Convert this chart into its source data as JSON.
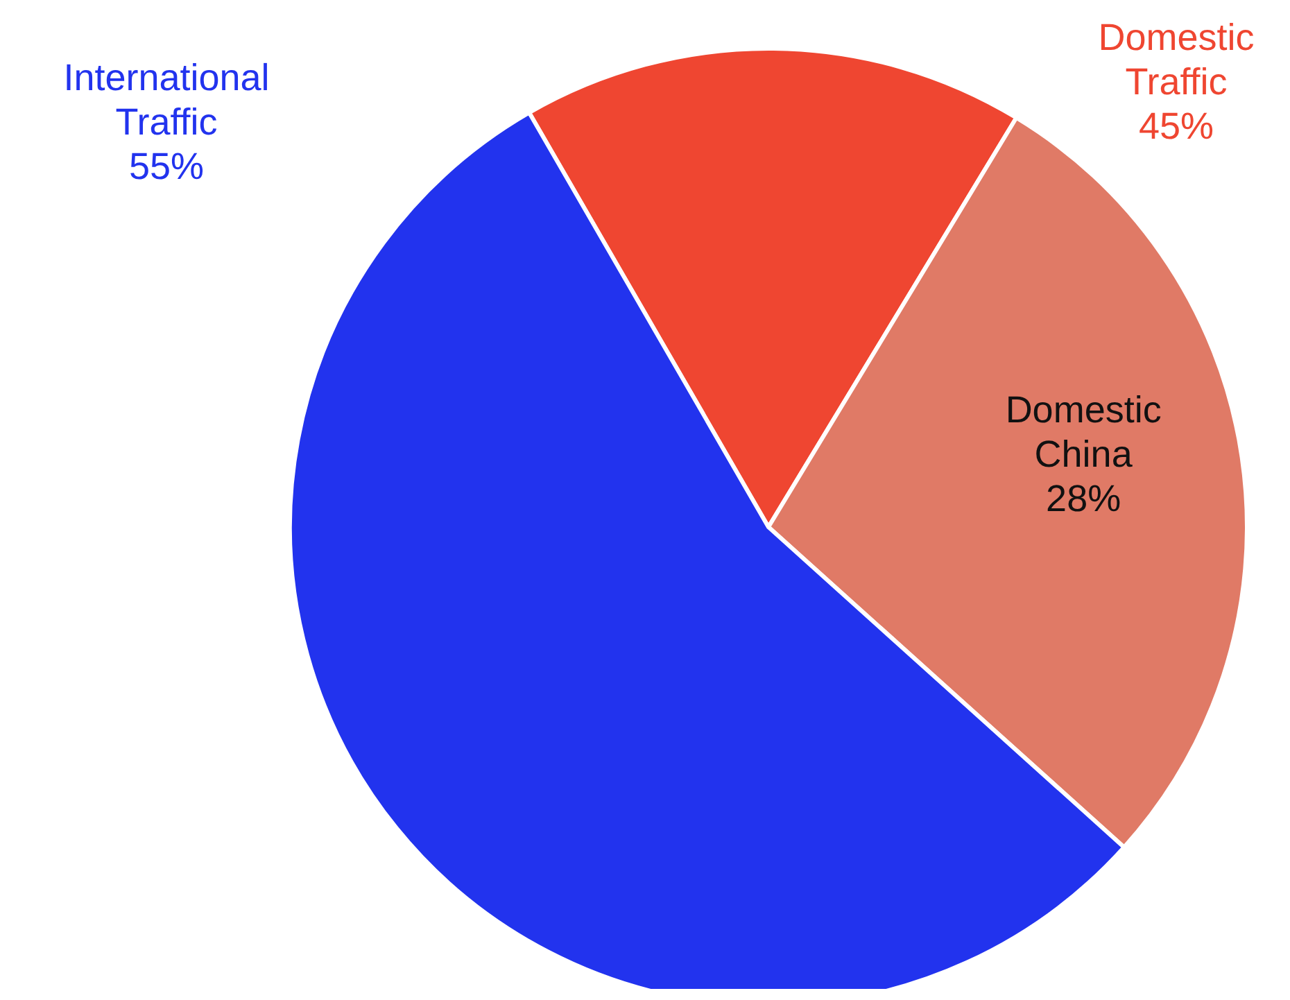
{
  "chart_data": {
    "type": "pie",
    "categories": [
      null,
      "Domestic China",
      "International Traffic"
    ],
    "values": [
      17,
      28,
      55
    ],
    "value_labels": [
      null,
      "28%",
      "55%"
    ],
    "colors": [
      "#ef4631",
      "#e07a66",
      "#2233ee"
    ],
    "annotations": [
      "Domestic Traffic 45%"
    ]
  }
}
